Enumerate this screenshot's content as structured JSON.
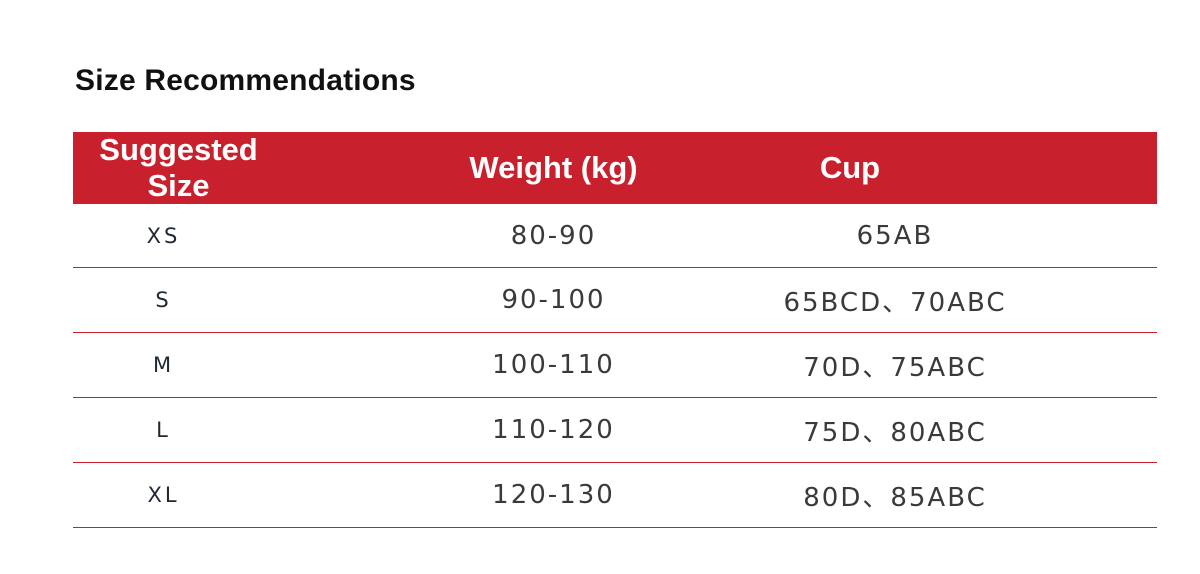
{
  "title": "Size Recommendations",
  "table": {
    "headers": {
      "size": "Suggested Size",
      "weight": "Weight (kg)",
      "cup": "Cup"
    },
    "rows": [
      {
        "size": "XS",
        "weight": "80-90",
        "cup": "65AB"
      },
      {
        "size": "S",
        "weight": "90-100",
        "cup": "65BCD、70ABC"
      },
      {
        "size": "M",
        "weight": "100-110",
        "cup": "70D、75ABC"
      },
      {
        "size": "L",
        "weight": "110-120",
        "cup": "75D、80ABC"
      },
      {
        "size": "XL",
        "weight": "120-130",
        "cup": "80D、85ABC"
      }
    ]
  },
  "colors": {
    "accent": "#c8202c",
    "header_text": "#ffffff",
    "title_text": "#111111"
  }
}
